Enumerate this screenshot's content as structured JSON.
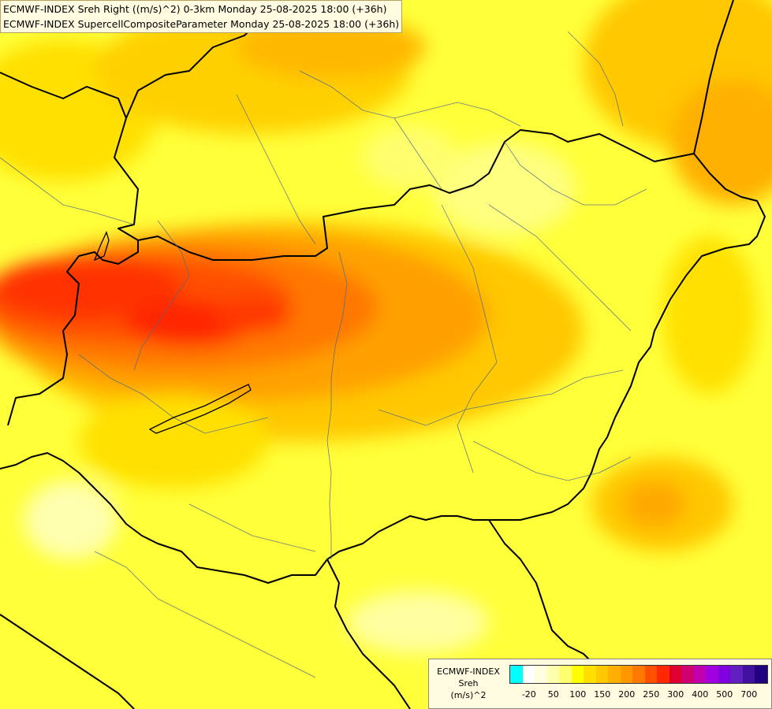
{
  "header": {
    "line1": "ECMWF-INDEX Sreh Right ((m/s)^2) 0-3km Monday 25-08-2025 18:00 (+36h)",
    "line2": "ECMWF-INDEX SupercellCompositeParameter Monday 25-08-2025 18:00 (+36h)"
  },
  "legend": {
    "title_line1": "ECMWF-INDEX",
    "title_line2": "Sreh",
    "title_line3": "(m/s)^2",
    "colors": [
      "#00ffff",
      "#ffffff",
      "#ffffe0",
      "#ffffb0",
      "#ffff70",
      "#ffff00",
      "#ffe000",
      "#ffc800",
      "#ffb000",
      "#ff9800",
      "#ff7800",
      "#ff5000",
      "#ff2800",
      "#e00030",
      "#d00070",
      "#c000b0",
      "#a000e0",
      "#8000e0",
      "#6020c0",
      "#4010a0",
      "#200080"
    ],
    "ticks": [
      {
        "label": "-20",
        "index": 1
      },
      {
        "label": "50",
        "index": 3
      },
      {
        "label": "100",
        "index": 5
      },
      {
        "label": "150",
        "index": 7
      },
      {
        "label": "200",
        "index": 9
      },
      {
        "label": "250",
        "index": 11
      },
      {
        "label": "300",
        "index": 13
      },
      {
        "label": "400",
        "index": 15
      },
      {
        "label": "500",
        "index": 17
      },
      {
        "label": "700",
        "index": 19
      }
    ]
  }
}
